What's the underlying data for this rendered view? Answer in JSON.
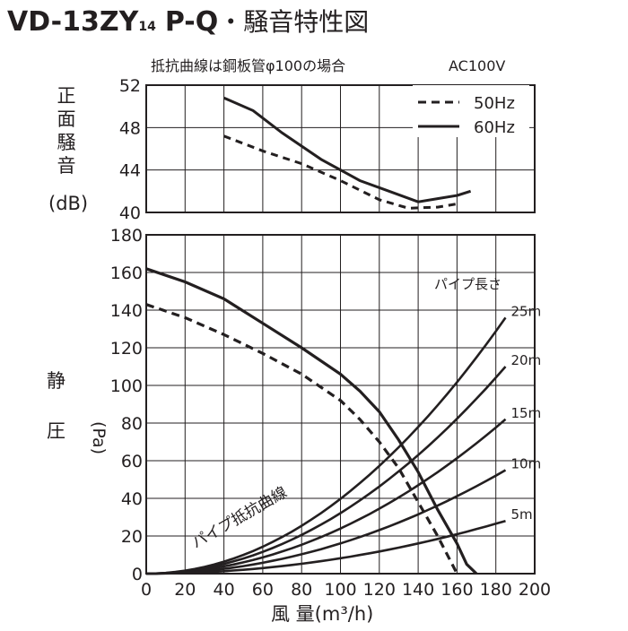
{
  "header": {
    "model": "VD-13ZY",
    "model_sub": "14",
    "model_suffix": "P-Q",
    "title_rest": "・騒音特性図"
  },
  "chart_data": [
    {
      "type": "line",
      "note": "抵抗曲線は鋼板管φ100の場合",
      "power": "AC100V",
      "ylabel": "正面騒音",
      "yunit": "(dB)",
      "xlim": [
        0,
        200
      ],
      "ylim": [
        40,
        52
      ],
      "yticks": [
        "52",
        "48",
        "44",
        "40"
      ],
      "grid": true,
      "legend_position": "top-right",
      "legend": [
        {
          "label": "50Hz",
          "style": "dashed"
        },
        {
          "label": "60Hz",
          "style": "solid"
        }
      ],
      "series": [
        {
          "name": "50Hz",
          "style": "dashed",
          "points": [
            [
              40,
              47.2
            ],
            [
              60,
              45.8
            ],
            [
              80,
              44.6
            ],
            [
              100,
              43.0
            ],
            [
              120,
              41.2
            ],
            [
              135,
              40.4
            ],
            [
              150,
              40.5
            ],
            [
              160,
              40.8
            ]
          ]
        },
        {
          "name": "60Hz",
          "style": "solid",
          "points": [
            [
              40,
              50.8
            ],
            [
              55,
              49.6
            ],
            [
              70,
              47.5
            ],
            [
              90,
              45.0
            ],
            [
              110,
              43.0
            ],
            [
              125,
              42.0
            ],
            [
              140,
              41.0
            ],
            [
              150,
              41.3
            ],
            [
              160,
              41.6
            ],
            [
              167,
              42.0
            ]
          ]
        }
      ]
    },
    {
      "type": "line",
      "xlabel": "風 量(m³/h)",
      "ylabel": "静 圧",
      "yunit": "(Pa)",
      "xlim": [
        0,
        200
      ],
      "ylim": [
        0,
        180
      ],
      "xticks": [
        "0",
        "20",
        "40",
        "60",
        "80",
        "100",
        "120",
        "140",
        "160",
        "180",
        "200"
      ],
      "yticks": [
        "180",
        "160",
        "140",
        "120",
        "100",
        "80",
        "60",
        "40",
        "20",
        "0"
      ],
      "grid": true,
      "pipe_header": "パイプ長さ",
      "resistance_label": "パイプ抵抗曲線",
      "series": [
        {
          "name": "50Hz",
          "style": "dashed",
          "points": [
            [
              0,
              143
            ],
            [
              20,
              136
            ],
            [
              40,
              127
            ],
            [
              60,
              117
            ],
            [
              80,
              106
            ],
            [
              100,
              92
            ],
            [
              110,
              82
            ],
            [
              120,
              70
            ],
            [
              130,
              56
            ],
            [
              140,
              38
            ],
            [
              150,
              20
            ],
            [
              160,
              0
            ]
          ]
        },
        {
          "name": "60Hz",
          "style": "solid",
          "points": [
            [
              0,
              162
            ],
            [
              20,
              155
            ],
            [
              40,
              146
            ],
            [
              60,
              133
            ],
            [
              80,
              120
            ],
            [
              100,
              106
            ],
            [
              110,
              97
            ],
            [
              120,
              86
            ],
            [
              130,
              71
            ],
            [
              140,
              54
            ],
            [
              150,
              34
            ],
            [
              160,
              16
            ],
            [
              165,
              5
            ],
            [
              170,
              0
            ]
          ]
        }
      ],
      "resistance_curves": [
        {
          "label": "25m",
          "value_at_185": 136
        },
        {
          "label": "20m",
          "value_at_185": 110
        },
        {
          "label": "15m",
          "value_at_185": 82
        },
        {
          "label": "10m",
          "value_at_185": 55
        },
        {
          "label": "5m",
          "value_at_185": 28
        }
      ]
    }
  ]
}
